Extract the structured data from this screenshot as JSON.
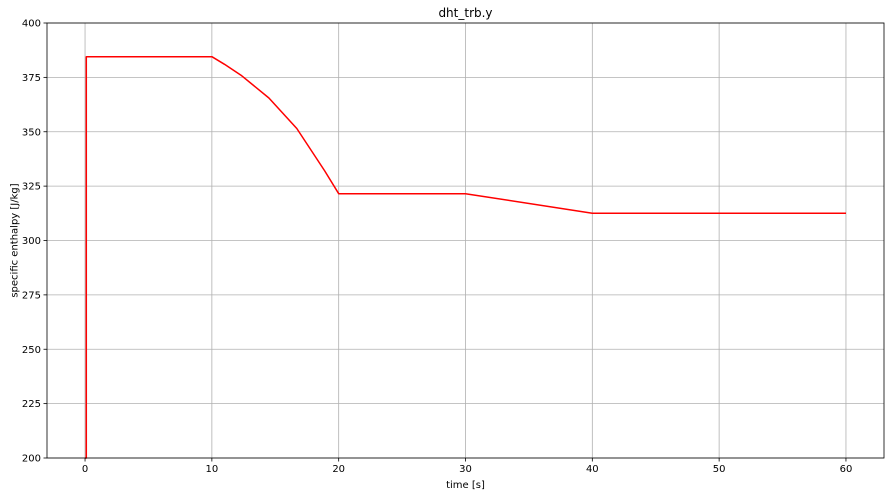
{
  "chart_data": {
    "type": "line",
    "title": "dht_trb.y",
    "xlabel": "time [s]",
    "ylabel": "specific enthalpy [J/kg]",
    "xlim": [
      -3,
      63
    ],
    "ylim": [
      200,
      400
    ],
    "xticks": [
      0,
      10,
      20,
      30,
      40,
      50,
      60
    ],
    "yticks": [
      200,
      225,
      250,
      275,
      300,
      325,
      350,
      375,
      400
    ],
    "grid": true,
    "series": [
      {
        "color": "#ff0000",
        "x": [
          0,
          0.1,
          0.1,
          10,
          11,
          12.3,
          14.5,
          16.7,
          18.9,
          20,
          30,
          40,
          60
        ],
        "y": [
          200,
          200,
          384.5,
          384.5,
          381,
          376,
          365.5,
          351.5,
          332,
          321.5,
          321.5,
          312.5,
          312.5
        ]
      }
    ]
  }
}
